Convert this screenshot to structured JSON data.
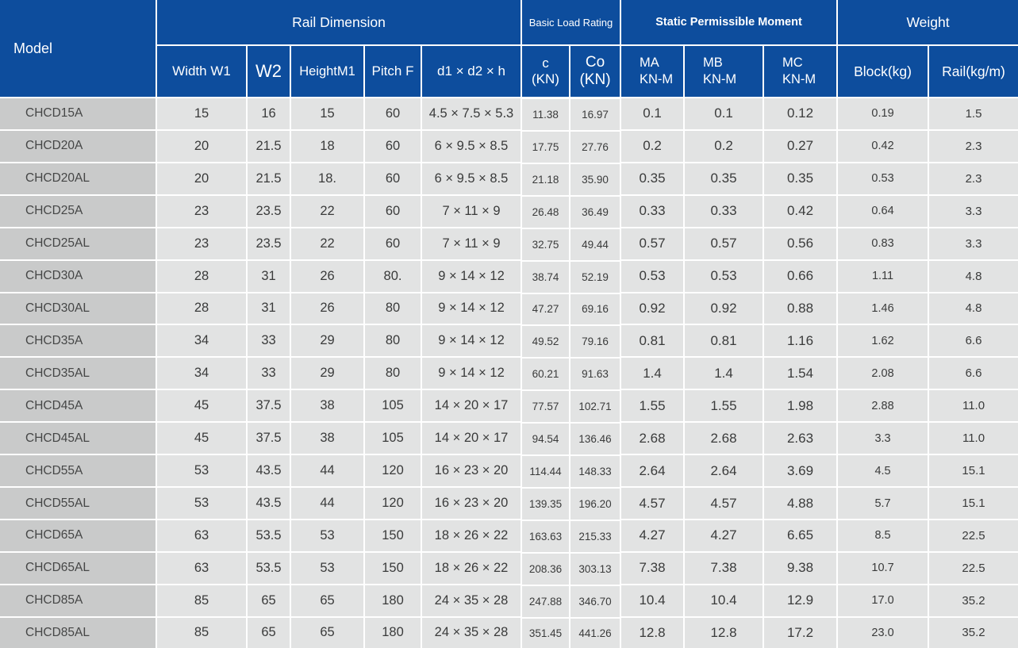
{
  "colors": {
    "header_bg": "#0d4d9d",
    "header_text": "#ffffff",
    "row_bg": "#e2e3e3",
    "model_col_bg": "#c9caca",
    "grid_line": "#ffffff",
    "cell_text": "#3a3b3b"
  },
  "table": {
    "model_header": "Model",
    "groups": {
      "rail_dimension": "Rail Dimension",
      "basic_load_rating": "Basic Load Rating",
      "static_permissible_moment": "Static Permissible Moment",
      "weight": "Weight"
    },
    "columns": {
      "w1": "Width W1",
      "w2": "W2",
      "height": "HeightM1",
      "pitch": "Pitch F",
      "d": "d1 × d2 × h",
      "c": "c\n(KN)",
      "co": "Co\n(KN)",
      "ma": "MA\nKN-M",
      "mb": "MB\nKN-M",
      "mc": "MC\nKN-M",
      "block": "Block(kg)",
      "rail": "Rail(kg/m)"
    },
    "rows": [
      {
        "model": "CHCD15A",
        "w1": "15",
        "w2": "16",
        "height": "15",
        "pitch": "60",
        "d": "4.5 × 7.5 × 5.3",
        "c": "11.38",
        "co": "16.97",
        "ma": "0.1",
        "mb": "0.1",
        "mc": "0.12",
        "block": "0.19",
        "rail": "1.5"
      },
      {
        "model": "CHCD20A",
        "w1": "20",
        "w2": "21.5",
        "height": "18",
        "pitch": "60",
        "d": "6 × 9.5 × 8.5",
        "c": "17.75",
        "co": "27.76",
        "ma": "0.2",
        "mb": "0.2",
        "mc": "0.27",
        "block": "0.42",
        "rail": "2.3"
      },
      {
        "model": "CHCD20AL",
        "w1": "20",
        "w2": "21.5",
        "height": "18.",
        "pitch": "60",
        "d": "6 × 9.5 × 8.5",
        "c": "21.18",
        "co": "35.90",
        "ma": "0.35",
        "mb": "0.35",
        "mc": "0.35",
        "block": "0.53",
        "rail": "2.3"
      },
      {
        "model": "CHCD25A",
        "w1": "23",
        "w2": "23.5",
        "height": "22",
        "pitch": "60",
        "d": "7 × 11 × 9",
        "c": "26.48",
        "co": "36.49",
        "ma": "0.33",
        "mb": "0.33",
        "mc": "0.42",
        "block": "0.64",
        "rail": "3.3"
      },
      {
        "model": "CHCD25AL",
        "w1": "23",
        "w2": "23.5",
        "height": "22",
        "pitch": "60",
        "d": "7 × 11 × 9",
        "c": "32.75",
        "co": "49.44",
        "ma": "0.57",
        "mb": "0.57",
        "mc": "0.56",
        "block": "0.83",
        "rail": "3.3"
      },
      {
        "model": "CHCD30A",
        "w1": "28",
        "w2": "31",
        "height": "26",
        "pitch": "80.",
        "d": "9 × 14 × 12",
        "c": "38.74",
        "co": "52.19",
        "ma": "0.53",
        "mb": "0.53",
        "mc": "0.66",
        "block": "1.11",
        "rail": "4.8"
      },
      {
        "model": "CHCD30AL",
        "w1": "28",
        "w2": "31",
        "height": "26",
        "pitch": "80",
        "d": "9 × 14 × 12",
        "c": "47.27",
        "co": "69.16",
        "ma": "0.92",
        "mb": "0.92",
        "mc": "0.88",
        "block": "1.46",
        "rail": "4.8"
      },
      {
        "model": "CHCD35A",
        "w1": "34",
        "w2": "33",
        "height": "29",
        "pitch": "80",
        "d": "9 × 14 × 12",
        "c": "49.52",
        "co": "79.16",
        "ma": "0.81",
        "mb": "0.81",
        "mc": "1.16",
        "block": "1.62",
        "rail": "6.6"
      },
      {
        "model": "CHCD35AL",
        "w1": "34",
        "w2": "33",
        "height": "29",
        "pitch": "80",
        "d": "9 × 14 × 12",
        "c": "60.21",
        "co": "91.63",
        "ma": "1.4",
        "mb": "1.4",
        "mc": "1.54",
        "block": "2.08",
        "rail": "6.6"
      },
      {
        "model": "CHCD45A",
        "w1": "45",
        "w2": "37.5",
        "height": "38",
        "pitch": "105",
        "d": "14 × 20 × 17",
        "c": "77.57",
        "co": "102.71",
        "ma": "1.55",
        "mb": "1.55",
        "mc": "1.98",
        "block": "2.88",
        "rail": "11.0"
      },
      {
        "model": "CHCD45AL",
        "w1": "45",
        "w2": "37.5",
        "height": "38",
        "pitch": "105",
        "d": "14 × 20 × 17",
        "c": "94.54",
        "co": "136.46",
        "ma": "2.68",
        "mb": "2.68",
        "mc": "2.63",
        "block": "3.3",
        "rail": "11.0"
      },
      {
        "model": "CHCD55A",
        "w1": "53",
        "w2": "43.5",
        "height": "44",
        "pitch": "120",
        "d": "16 × 23 × 20",
        "c": "114.44",
        "co": "148.33",
        "ma": "2.64",
        "mb": "2.64",
        "mc": "3.69",
        "block": "4.5",
        "rail": "15.1"
      },
      {
        "model": "CHCD55AL",
        "w1": "53",
        "w2": "43.5",
        "height": "44",
        "pitch": "120",
        "d": "16 × 23 × 20",
        "c": "139.35",
        "co": "196.20",
        "ma": "4.57",
        "mb": "4.57",
        "mc": "4.88",
        "block": "5.7",
        "rail": "15.1"
      },
      {
        "model": "CHCD65A",
        "w1": "63",
        "w2": "53.5",
        "height": "53",
        "pitch": "150",
        "d": "18 × 26 × 22",
        "c": "163.63",
        "co": "215.33",
        "ma": "4.27",
        "mb": "4.27",
        "mc": "6.65",
        "block": "8.5",
        "rail": "22.5"
      },
      {
        "model": "CHCD65AL",
        "w1": "63",
        "w2": "53.5",
        "height": "53",
        "pitch": "150",
        "d": "18 × 26 × 22",
        "c": "208.36",
        "co": "303.13",
        "ma": "7.38",
        "mb": "7.38",
        "mc": "9.38",
        "block": "10.7",
        "rail": "22.5"
      },
      {
        "model": "CHCD85A",
        "w1": "85",
        "w2": "65",
        "height": "65",
        "pitch": "180",
        "d": "24 × 35 × 28",
        "c": "247.88",
        "co": "346.70",
        "ma": "10.4",
        "mb": "10.4",
        "mc": "12.9",
        "block": "17.0",
        "rail": "35.2"
      },
      {
        "model": "CHCD85AL",
        "w1": "85",
        "w2": "65",
        "height": "65",
        "pitch": "180",
        "d": "24 × 35 × 28",
        "c": "351.45",
        "co": "441.26",
        "ma": "12.8",
        "mb": "12.8",
        "mc": "17.2",
        "block": "23.0",
        "rail": "35.2"
      }
    ]
  }
}
